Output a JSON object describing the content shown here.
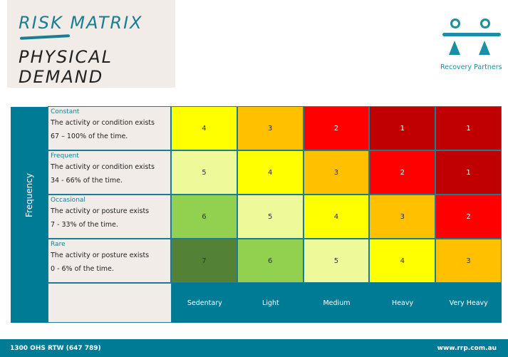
{
  "header": {
    "title": "RISK MATRIX",
    "subtitle": "PHYSICAL DEMAND"
  },
  "logo": {
    "name": "Recovery Partners"
  },
  "matrix": {
    "axis_label": "Frequency",
    "rows": [
      {
        "name": "Constant",
        "line1": "The activity or condition exists",
        "line2": "67 – 100% of the time.",
        "scores": [
          4,
          3,
          2,
          1,
          1
        ]
      },
      {
        "name": "Frequent",
        "line1": "The activity or condition exists",
        "line2": "34 - 66% of the time.",
        "scores": [
          5,
          4,
          3,
          2,
          1
        ]
      },
      {
        "name": "Occasional",
        "line1": "The activity or posture exists",
        "line2": "7 - 33% of the time.",
        "scores": [
          6,
          5,
          4,
          3,
          2
        ]
      },
      {
        "name": "Rare",
        "line1": "The activity or posture exists",
        "line2": "0 - 6% of the time.",
        "scores": [
          7,
          6,
          5,
          4,
          3
        ]
      }
    ],
    "columns": [
      "Sedentary",
      "Light",
      "Medium",
      "Heavy",
      "Very Heavy"
    ],
    "score_colors": {
      "1": "#c00000",
      "2": "#ff0000",
      "3": "#ffc000",
      "4": "#ffff00",
      "5": "#eefa9a",
      "6": "#92d050",
      "7": "#538135"
    }
  },
  "footer": {
    "phone": "1300 OHS RTW (647 789)",
    "website": "www.rrp.com.au"
  }
}
